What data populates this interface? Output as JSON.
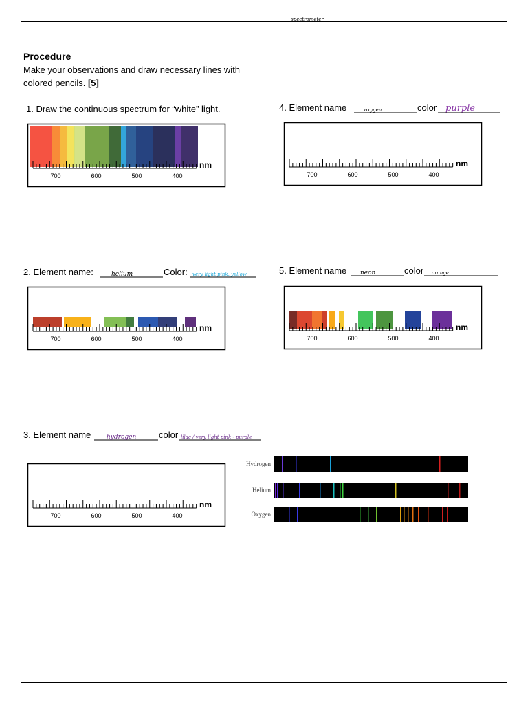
{
  "header": "spectrometer",
  "title": "Procedure",
  "instructions": {
    "line1": "Make your observations and draw necessary lines with",
    "line2": "colored pencils.",
    "points": "[5]"
  },
  "ruler": {
    "ticks": [
      700,
      600,
      500,
      400
    ],
    "unit": "nm"
  },
  "sections": [
    {
      "label": "1. Draw the continuous spectrum for “white” light."
    },
    {
      "label": "2. Element name:",
      "name": "helium",
      "color_label": "Color:",
      "color": "very light pink, yellow"
    },
    {
      "label": "3. Element name",
      "name": "hydrogen",
      "color_label": "color",
      "color": "lilac / very light pink - purple"
    },
    {
      "label": "4.  Element name",
      "name": "oxygen",
      "color_label": "color",
      "color": "purple"
    },
    {
      "label": "5. Element name",
      "name": "neon",
      "color_label": "color",
      "color": "orange"
    }
  ],
  "reference": {
    "labels": [
      "Hydrogen",
      "Helium",
      "Oxygen"
    ]
  }
}
